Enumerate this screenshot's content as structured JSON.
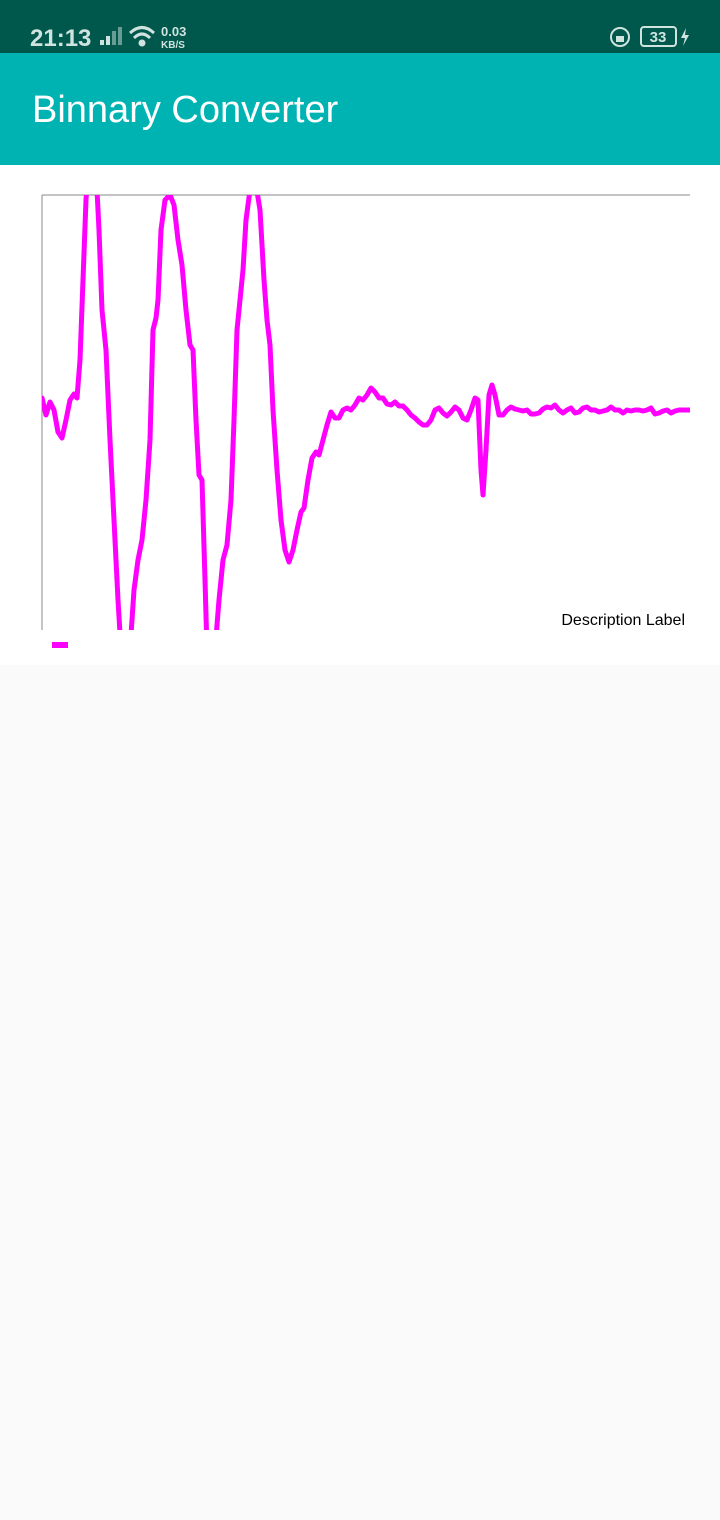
{
  "status_bar": {
    "time": "21:13",
    "speed": "0.03",
    "speed_unit": "KB/S",
    "battery": "33"
  },
  "app_bar": {
    "title": "Binnary Converter"
  },
  "chart_data": {
    "type": "line",
    "description": "Description Label",
    "x": [
      0,
      4,
      8,
      12,
      16,
      20,
      24,
      28,
      32,
      35,
      38,
      41,
      44,
      46,
      54,
      57,
      60,
      64,
      68,
      72,
      76,
      79,
      88,
      92,
      96,
      100,
      104,
      108,
      111,
      114,
      116,
      119,
      123,
      128,
      132,
      136,
      140,
      144,
      148,
      151,
      154,
      157,
      160,
      163,
      165,
      173,
      177,
      181,
      185,
      189,
      192,
      195,
      198,
      201,
      204,
      208,
      214,
      218,
      222,
      225,
      228,
      231,
      235,
      239,
      243,
      247,
      251,
      255,
      259,
      262,
      266,
      270,
      274,
      277,
      281,
      285,
      289,
      293,
      297,
      301,
      305,
      309,
      313,
      317,
      321,
      325,
      329,
      333,
      337,
      341,
      345,
      349,
      353,
      357,
      361,
      365,
      369,
      373,
      377,
      381,
      385,
      389,
      393,
      397,
      401,
      405,
      409,
      413,
      417,
      421,
      425,
      429,
      433,
      436,
      439,
      441,
      444,
      447,
      450,
      453,
      457,
      461,
      465,
      469,
      473,
      477,
      481,
      485,
      489,
      493,
      497,
      501,
      505,
      509,
      513,
      517,
      521,
      525,
      529,
      533,
      537,
      541,
      545,
      549,
      553,
      557,
      561,
      565,
      569,
      573,
      577,
      581,
      585,
      589,
      593,
      597,
      601,
      605,
      609,
      613,
      617,
      621,
      625,
      629,
      633,
      637,
      641,
      645,
      648
    ],
    "series": [
      {
        "color": "#ff00ff",
        "values": [
          14,
          -3,
          10,
          2,
          -20,
          -26,
          -8,
          12,
          18,
          14,
          52,
          132,
          212,
          242,
          242,
          182,
          102,
          62,
          -28,
          -108,
          -188,
          -238,
          -238,
          -178,
          -148,
          -128,
          -88,
          -28,
          82,
          94,
          112,
          182,
          212,
          217,
          207,
          172,
          147,
          102,
          67,
          62,
          -8,
          -63,
          -68,
          -168,
          -238,
          -238,
          -188,
          -148,
          -133,
          -88,
          -8,
          82,
          112,
          142,
          192,
          222,
          227,
          202,
          132,
          92,
          67,
          2,
          -58,
          -108,
          -138,
          -150,
          -138,
          -118,
          -100,
          -96,
          -68,
          -46,
          -40,
          -43,
          -28,
          -13,
          0,
          -6,
          -6,
          2,
          4,
          2,
          7,
          14,
          12,
          17,
          24,
          20,
          14,
          14,
          8,
          7,
          10,
          6,
          6,
          2,
          -3,
          -6,
          -10,
          -13,
          -13,
          -8,
          2,
          4,
          -1,
          -4,
          0,
          5,
          2,
          -6,
          -8,
          2,
          14,
          12,
          -58,
          -83,
          -38,
          17,
          27,
          17,
          -3,
          -3,
          2,
          5,
          3,
          2,
          1,
          2,
          -2,
          -2,
          -1,
          3,
          5,
          4,
          7,
          2,
          -1,
          2,
          4,
          -1,
          0,
          4,
          5,
          2,
          2,
          0,
          1,
          2,
          5,
          2,
          2,
          -1,
          2,
          1,
          2,
          2,
          1,
          2,
          4,
          -2,
          -1,
          1,
          2,
          -1,
          1,
          2,
          2,
          2,
          2
        ]
      }
    ],
    "xlim": [
      0,
      648
    ],
    "ylim": [
      -218,
      217
    ]
  }
}
